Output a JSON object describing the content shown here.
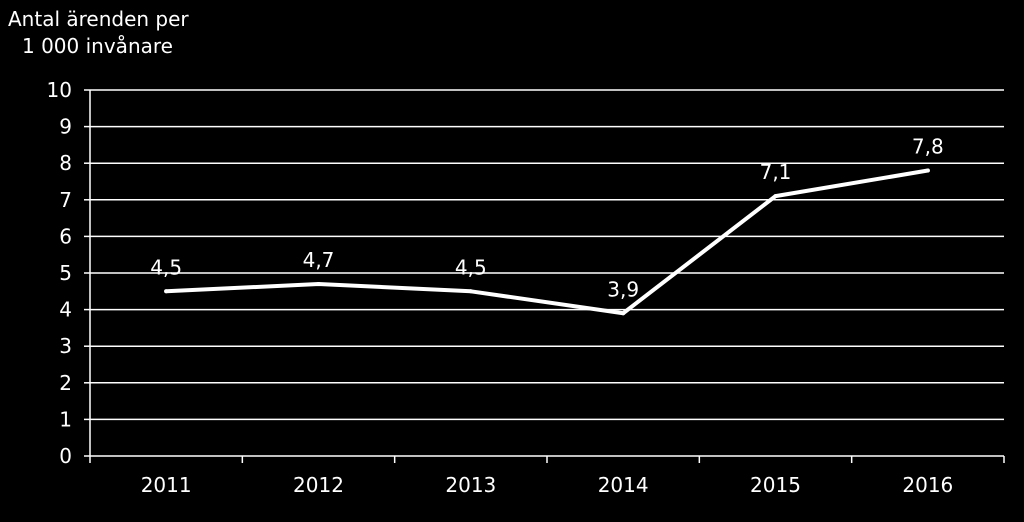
{
  "chart_data": {
    "type": "line",
    "ylabel_line1": "Antal ärenden per",
    "ylabel_line2": "1 000 invånare",
    "categories": [
      "2011",
      "2012",
      "2013",
      "2014",
      "2015",
      "2016"
    ],
    "values": [
      4.5,
      4.7,
      4.5,
      3.9,
      7.1,
      7.8
    ],
    "data_labels": [
      "4,5",
      "4,7",
      "4,5",
      "3,9",
      "7,1",
      "7,8"
    ],
    "ylim": [
      0,
      10
    ],
    "yticks": [
      "0",
      "1",
      "2",
      "3",
      "4",
      "5",
      "6",
      "7",
      "8",
      "9",
      "10"
    ],
    "grid": true,
    "colors": {
      "background": "#000000",
      "line": "#ffffff",
      "text": "#ffffff",
      "grid": "#ffffff"
    }
  }
}
